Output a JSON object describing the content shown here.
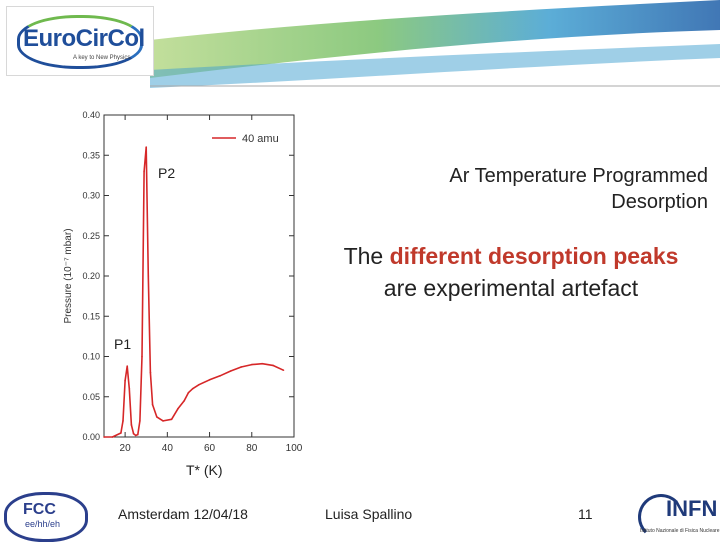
{
  "logo": {
    "main_text": "EuroCirCol",
    "tagline": "A key to New Physics"
  },
  "slide": {
    "title_line1": "Ar Temperature Programmed",
    "title_line2": "Desorption",
    "message_pre": "The ",
    "message_highlight": "different desorption peaks",
    "message_post": "are experimental artefact",
    "highlight_color": "#c0392b"
  },
  "labels": {
    "p1": "P1",
    "p2": "P2"
  },
  "footer": {
    "event": "Amsterdam 12/04/18",
    "author": "Luisa Spallino",
    "page": "11"
  },
  "logos": {
    "fcc": "FCC",
    "fcc_sub": "ee/hh/eh",
    "infn": "INFN",
    "infn_sub": "Istituto Nazionale di Fisica Nucleare"
  },
  "chart_data": {
    "type": "line",
    "xlabel": "T* (K)",
    "ylabel": "Pressure (10⁻⁷ mbar)",
    "xlim": [
      10,
      100
    ],
    "ylim": [
      0.0,
      0.4
    ],
    "xticks": [
      "20",
      "40",
      "60",
      "80",
      "100"
    ],
    "yticks": [
      "0.00",
      "0.05",
      "0.10",
      "0.15",
      "0.20",
      "0.25",
      "0.30",
      "0.35",
      "0.40"
    ],
    "legend_position": "top-right",
    "series": [
      {
        "name": "40 amu",
        "color": "#d62728",
        "x": [
          10,
          14,
          18,
          19,
          20,
          21,
          22,
          23,
          24,
          25,
          26,
          27,
          28,
          29,
          30,
          31,
          32,
          33,
          35,
          38,
          42,
          45,
          48,
          50,
          52,
          55,
          60,
          65,
          70,
          75,
          80,
          85,
          90,
          95
        ],
        "y": [
          0.0,
          0.0,
          0.005,
          0.02,
          0.07,
          0.088,
          0.06,
          0.015,
          0.004,
          0.002,
          0.003,
          0.02,
          0.1,
          0.33,
          0.36,
          0.2,
          0.08,
          0.04,
          0.025,
          0.02,
          0.022,
          0.035,
          0.045,
          0.055,
          0.06,
          0.065,
          0.071,
          0.076,
          0.082,
          0.087,
          0.09,
          0.091,
          0.089,
          0.083
        ]
      }
    ]
  }
}
